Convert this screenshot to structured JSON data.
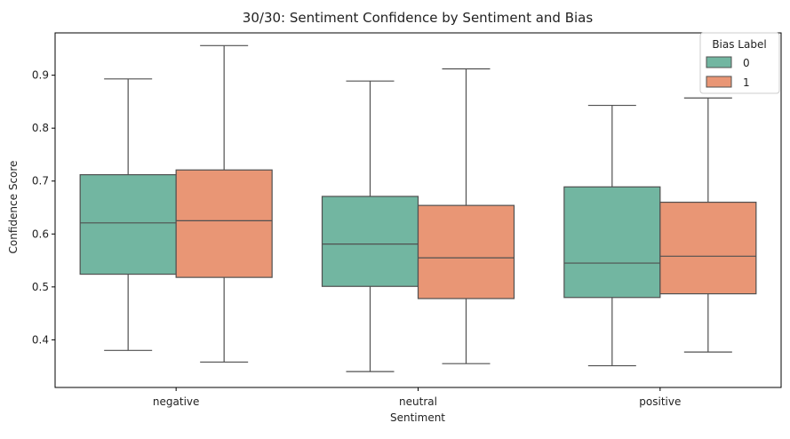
{
  "chart_data": {
    "type": "boxplot",
    "title": "30/30: Sentiment Confidence by Sentiment and Bias",
    "xlabel": "Sentiment",
    "ylabel": "Confidence Score",
    "categories": [
      "negative",
      "neutral",
      "positive"
    ],
    "ylim": [
      0.31,
      0.98
    ],
    "yticks": [
      0.4,
      0.5,
      0.6,
      0.7,
      0.8,
      0.9
    ],
    "ytick_labels": [
      "0.4",
      "0.5",
      "0.6",
      "0.7",
      "0.8",
      "0.9"
    ],
    "grid": false,
    "legend": {
      "title": "Bias Label",
      "position": "top-right",
      "entries": [
        "0",
        "1"
      ]
    },
    "series": [
      {
        "name": "0",
        "color": "#72b6a1",
        "boxes": [
          {
            "min": 0.38,
            "q1": 0.524,
            "median": 0.621,
            "q3": 0.712,
            "max": 0.893
          },
          {
            "min": 0.34,
            "q1": 0.501,
            "median": 0.581,
            "q3": 0.671,
            "max": 0.889
          },
          {
            "min": 0.351,
            "q1": 0.48,
            "median": 0.545,
            "q3": 0.689,
            "max": 0.843
          }
        ]
      },
      {
        "name": "1",
        "color": "#e99675",
        "boxes": [
          {
            "min": 0.358,
            "q1": 0.518,
            "median": 0.625,
            "q3": 0.721,
            "max": 0.956
          },
          {
            "min": 0.355,
            "q1": 0.478,
            "median": 0.555,
            "q3": 0.654,
            "max": 0.912
          },
          {
            "min": 0.377,
            "q1": 0.487,
            "median": 0.558,
            "q3": 0.66,
            "max": 0.857
          }
        ]
      }
    ],
    "colors": {
      "edge": "#505050",
      "axis": "#000000"
    }
  }
}
